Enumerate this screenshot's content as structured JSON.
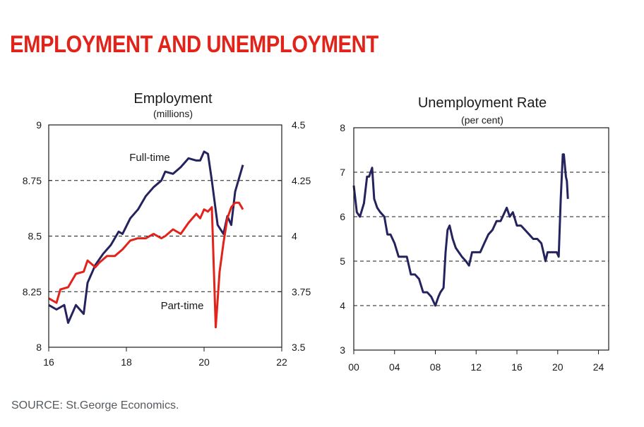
{
  "page": {
    "title": "EMPLOYMENT AND UNEMPLOYMENT",
    "source": "SOURCE: St.George Economics."
  },
  "colors": {
    "title": "#e2231a",
    "full_time": "#25235e",
    "part_time": "#e2231a",
    "unemployment": "#25235e"
  },
  "chart_data": [
    {
      "type": "line",
      "title": "Employment",
      "subtitle": "(millions)",
      "grid": "dashed horizontal",
      "x_ticks": [
        "16",
        "18",
        "20",
        "22"
      ],
      "xlim": [
        2016,
        2022
      ],
      "y_left_ticks": [
        "8",
        "8.25",
        "8.5",
        "8.75",
        "9"
      ],
      "ylim_left": [
        8,
        9
      ],
      "y_right_ticks": [
        "3.5",
        "3.75",
        "4",
        "4.25",
        "4.5"
      ],
      "ylim_right": [
        3.5,
        4.5
      ],
      "series": [
        {
          "name": "Full-time",
          "axis": "left",
          "color": "#25235e",
          "x": [
            2016.0,
            2016.2,
            2016.4,
            2016.5,
            2016.7,
            2016.9,
            2017.0,
            2017.2,
            2017.4,
            2017.6,
            2017.8,
            2017.9,
            2018.1,
            2018.3,
            2018.5,
            2018.7,
            2018.9,
            2019.0,
            2019.2,
            2019.4,
            2019.6,
            2019.8,
            2019.9,
            2020.0,
            2020.1,
            2020.2,
            2020.35,
            2020.5,
            2020.6,
            2020.7,
            2020.8,
            2020.9,
            2021.0
          ],
          "y": [
            8.19,
            8.17,
            8.19,
            8.11,
            8.19,
            8.15,
            8.29,
            8.37,
            8.42,
            8.46,
            8.52,
            8.51,
            8.58,
            8.62,
            8.68,
            8.72,
            8.75,
            8.79,
            8.78,
            8.81,
            8.85,
            8.84,
            8.84,
            8.88,
            8.87,
            8.75,
            8.55,
            8.51,
            8.59,
            8.55,
            8.7,
            8.76,
            8.82
          ]
        },
        {
          "name": "Part-time",
          "axis": "right",
          "color": "#e2231a",
          "x": [
            2016.0,
            2016.2,
            2016.3,
            2016.5,
            2016.7,
            2016.9,
            2017.0,
            2017.2,
            2017.3,
            2017.5,
            2017.7,
            2017.9,
            2018.1,
            2018.3,
            2018.5,
            2018.7,
            2018.9,
            2019.0,
            2019.2,
            2019.4,
            2019.6,
            2019.8,
            2019.9,
            2020.0,
            2020.1,
            2020.2,
            2020.3,
            2020.4,
            2020.5,
            2020.6,
            2020.7,
            2020.8,
            2020.9,
            2021.0
          ],
          "y": [
            3.72,
            3.7,
            3.76,
            3.77,
            3.83,
            3.84,
            3.89,
            3.86,
            3.88,
            3.91,
            3.91,
            3.94,
            3.98,
            3.99,
            3.99,
            4.01,
            3.99,
            4.0,
            4.03,
            4.01,
            4.06,
            4.1,
            4.08,
            4.12,
            4.11,
            4.13,
            3.59,
            3.84,
            3.97,
            4.08,
            4.13,
            4.15,
            4.15,
            4.12
          ]
        }
      ],
      "annotations": [
        {
          "text": "Full-time",
          "series": "Full-time"
        },
        {
          "text": "Part-time",
          "series": "Part-time"
        }
      ]
    },
    {
      "type": "line",
      "title": "Unemployment Rate",
      "subtitle": "(per cent)",
      "grid": "dashed horizontal",
      "x_ticks": [
        "00",
        "04",
        "08",
        "12",
        "16",
        "20",
        "24"
      ],
      "xlim": [
        2000,
        2025
      ],
      "y_ticks": [
        "3",
        "4",
        "5",
        "6",
        "7",
        "8"
      ],
      "ylim": [
        3,
        8
      ],
      "series": [
        {
          "name": "Unemployment Rate",
          "color": "#25235e",
          "x": [
            2000.0,
            2000.3,
            2000.6,
            2001.0,
            2001.3,
            2001.5,
            2001.8,
            2002.0,
            2002.3,
            2002.6,
            2003.0,
            2003.3,
            2003.6,
            2004.0,
            2004.4,
            2004.8,
            2005.2,
            2005.6,
            2006.0,
            2006.4,
            2006.8,
            2007.2,
            2007.6,
            2008.0,
            2008.3,
            2008.5,
            2008.8,
            2009.0,
            2009.2,
            2009.4,
            2009.7,
            2010.0,
            2010.3,
            2010.6,
            2011.0,
            2011.3,
            2011.6,
            2012.0,
            2012.4,
            2012.8,
            2013.2,
            2013.6,
            2014.0,
            2014.4,
            2014.8,
            2015.0,
            2015.3,
            2015.6,
            2016.0,
            2016.4,
            2016.8,
            2017.2,
            2017.6,
            2018.0,
            2018.4,
            2018.8,
            2019.0,
            2019.3,
            2019.6,
            2019.9,
            2020.1,
            2020.3,
            2020.5,
            2020.6,
            2020.8,
            2020.9,
            2021.0
          ],
          "y": [
            6.7,
            6.1,
            6.0,
            6.3,
            6.9,
            6.9,
            7.1,
            6.4,
            6.2,
            6.1,
            6.0,
            5.6,
            5.6,
            5.4,
            5.1,
            5.1,
            5.1,
            4.7,
            4.7,
            4.6,
            4.3,
            4.3,
            4.2,
            4.0,
            4.2,
            4.3,
            4.4,
            5.2,
            5.7,
            5.8,
            5.5,
            5.3,
            5.2,
            5.1,
            5.0,
            4.9,
            5.2,
            5.2,
            5.2,
            5.4,
            5.6,
            5.7,
            5.9,
            5.9,
            6.1,
            6.2,
            6.0,
            6.1,
            5.8,
            5.8,
            5.7,
            5.6,
            5.5,
            5.5,
            5.4,
            5.0,
            5.2,
            5.2,
            5.2,
            5.2,
            5.1,
            6.4,
            7.4,
            7.4,
            6.9,
            6.8,
            6.4
          ]
        }
      ]
    }
  ]
}
